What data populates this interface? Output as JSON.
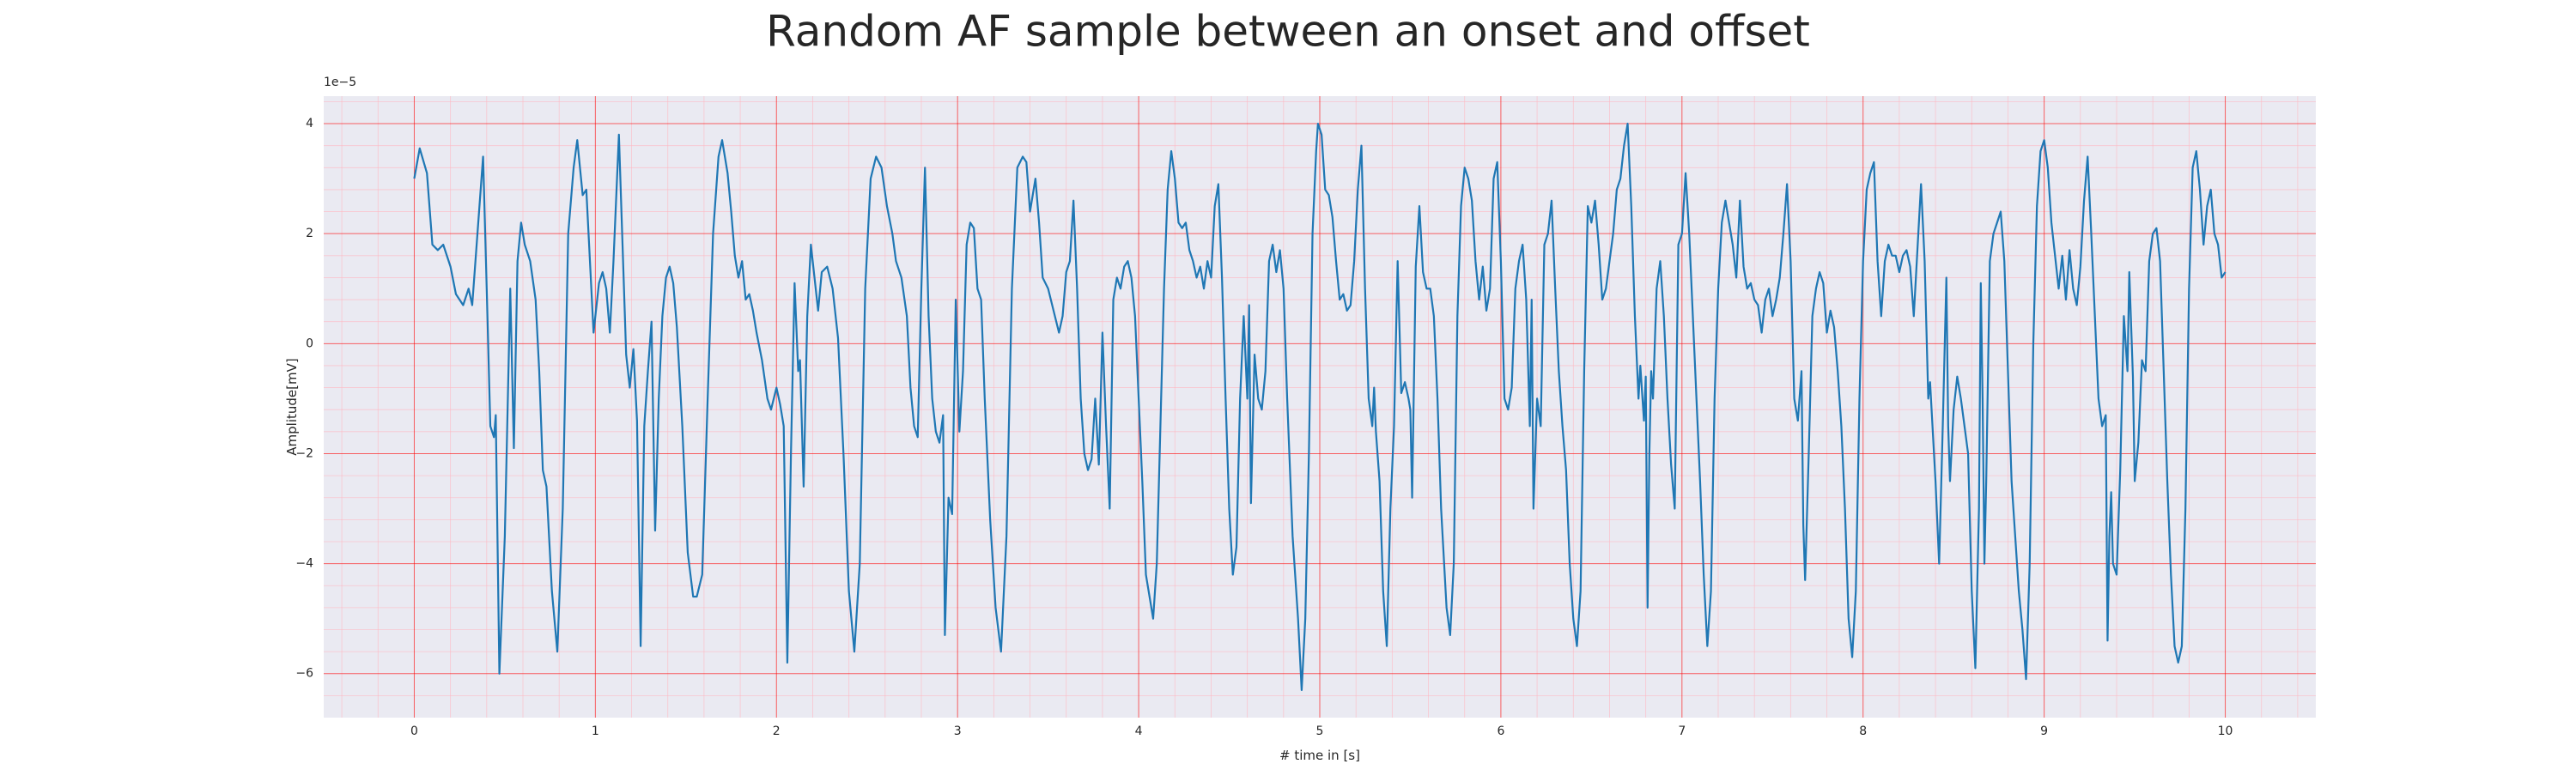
{
  "chart_data": {
    "type": "line",
    "title": "Random AF sample between an onset and offset",
    "xlabel": "# time in [s]",
    "ylabel": "Amplitude[mV]",
    "offset_text": "1e−5",
    "color": "#1f77b4",
    "grid": true,
    "minor_grid": true,
    "xlim": [
      -0.5,
      10.5
    ],
    "ylim": [
      -6.8,
      4.5
    ],
    "xticks": [
      0,
      1,
      2,
      3,
      4,
      5,
      6,
      7,
      8,
      9,
      10
    ],
    "yticks": [
      {
        "value": -6,
        "label": "−6"
      },
      {
        "value": -4,
        "label": "−4"
      },
      {
        "value": -2,
        "label": "−2"
      },
      0,
      2,
      4
    ],
    "x": [
      0,
      0.03,
      0.07,
      0.1,
      0.13,
      0.16,
      0.2,
      0.23,
      0.27,
      0.3,
      0.32,
      0.36,
      0.38,
      0.4,
      0.42,
      0.44,
      0.45,
      0.47,
      0.5,
      0.53,
      0.55,
      0.57,
      0.59,
      0.61,
      0.64,
      0.67,
      0.69,
      0.71,
      0.73,
      0.76,
      0.79,
      0.82,
      0.85,
      0.88,
      0.9,
      0.93,
      0.95,
      0.97,
      0.99,
      1.02,
      1.04,
      1.06,
      1.08,
      1.1,
      1.13,
      1.15,
      1.17,
      1.19,
      1.21,
      1.23,
      1.25,
      1.27,
      1.29,
      1.31,
      1.33,
      1.35,
      1.37,
      1.39,
      1.41,
      1.43,
      1.45,
      1.48,
      1.51,
      1.54,
      1.56,
      1.59,
      1.62,
      1.65,
      1.68,
      1.7,
      1.73,
      1.75,
      1.77,
      1.79,
      1.81,
      1.83,
      1.85,
      1.87,
      1.89,
      1.92,
      1.95,
      1.97,
      2.0,
      2.02,
      2.04,
      2.06,
      2.08,
      2.1,
      2.12,
      2.13,
      2.15,
      2.17,
      2.19,
      2.21,
      2.23,
      2.25,
      2.28,
      2.31,
      2.34,
      2.37,
      2.4,
      2.43,
      2.46,
      2.49,
      2.52,
      2.55,
      2.58,
      2.61,
      2.64,
      2.66,
      2.69,
      2.72,
      2.74,
      2.76,
      2.78,
      2.8,
      2.82,
      2.84,
      2.86,
      2.88,
      2.9,
      2.92,
      2.93,
      2.95,
      2.97,
      2.99,
      3.01,
      3.03,
      3.05,
      3.07,
      3.09,
      3.11,
      3.13,
      3.15,
      3.18,
      3.21,
      3.24,
      3.27,
      3.3,
      3.33,
      3.36,
      3.38,
      3.4,
      3.43,
      3.45,
      3.47,
      3.5,
      3.53,
      3.56,
      3.58,
      3.6,
      3.62,
      3.64,
      3.66,
      3.68,
      3.7,
      3.72,
      3.74,
      3.76,
      3.78,
      3.8,
      3.82,
      3.84,
      3.86,
      3.88,
      3.9,
      3.92,
      3.94,
      3.96,
      3.98,
      4.0,
      4.02,
      4.04,
      4.06,
      4.08,
      4.1,
      4.12,
      4.14,
      4.16,
      4.18,
      4.2,
      4.22,
      4.24,
      4.26,
      4.28,
      4.3,
      4.32,
      4.34,
      4.36,
      4.38,
      4.4,
      4.42,
      4.44,
      4.46,
      4.48,
      4.5,
      4.52,
      4.54,
      4.56,
      4.58,
      4.6,
      4.61,
      4.62,
      4.64,
      4.66,
      4.68,
      4.7,
      4.72,
      4.74,
      4.76,
      4.78,
      4.8,
      4.82,
      4.85,
      4.88,
      4.9,
      4.92,
      4.94,
      4.96,
      4.98,
      4.99,
      5.01,
      5.03,
      5.05,
      5.07,
      5.09,
      5.11,
      5.13,
      5.15,
      5.17,
      5.19,
      5.21,
      5.23,
      5.25,
      5.27,
      5.29,
      5.3,
      5.31,
      5.33,
      5.35,
      5.37,
      5.39,
      5.41,
      5.43,
      5.45,
      5.47,
      5.49,
      5.5,
      5.51,
      5.53,
      5.55,
      5.57,
      5.59,
      5.61,
      5.63,
      5.65,
      5.67,
      5.7,
      5.72,
      5.74,
      5.76,
      5.78,
      5.8,
      5.82,
      5.84,
      5.86,
      5.88,
      5.9,
      5.92,
      5.94,
      5.96,
      5.98,
      6.0,
      6.02,
      6.04,
      6.06,
      6.08,
      6.1,
      6.12,
      6.14,
      6.16,
      6.17,
      6.18,
      6.2,
      6.22,
      6.24,
      6.26,
      6.28,
      6.3,
      6.32,
      6.34,
      6.36,
      6.38,
      6.4,
      6.42,
      6.44,
      6.46,
      6.48,
      6.5,
      6.52,
      6.54,
      6.56,
      6.58,
      6.6,
      6.62,
      6.64,
      6.66,
      6.68,
      6.7,
      6.72,
      6.74,
      6.76,
      6.77,
      6.79,
      6.8,
      6.81,
      6.82,
      6.83,
      6.84,
      6.86,
      6.88,
      6.9,
      6.92,
      6.94,
      6.96,
      6.98,
      7.0,
      7.02,
      7.04,
      7.06,
      7.08,
      7.1,
      7.12,
      7.14,
      7.16,
      7.18,
      7.2,
      7.22,
      7.24,
      7.26,
      7.28,
      7.3,
      7.32,
      7.34,
      7.36,
      7.38,
      7.4,
      7.42,
      7.44,
      7.46,
      7.48,
      7.5,
      7.52,
      7.54,
      7.56,
      7.58,
      7.6,
      7.62,
      7.64,
      7.66,
      7.67,
      7.68,
      7.7,
      7.72,
      7.74,
      7.76,
      7.78,
      7.8,
      7.82,
      7.84,
      7.86,
      7.88,
      7.9,
      7.92,
      7.94,
      7.96,
      7.98,
      8.0,
      8.02,
      8.04,
      8.06,
      8.08,
      8.1,
      8.12,
      8.14,
      8.16,
      8.18,
      8.2,
      8.22,
      8.24,
      8.26,
      8.28,
      8.3,
      8.32,
      8.34,
      8.36,
      8.37,
      8.38,
      8.4,
      8.42,
      8.44,
      8.46,
      8.47,
      8.48,
      8.5,
      8.52,
      8.54,
      8.56,
      8.58,
      8.6,
      8.62,
      8.64,
      8.65,
      8.66,
      8.67,
      8.68,
      8.7,
      8.72,
      8.74,
      8.76,
      8.78,
      8.8,
      8.82,
      8.84,
      8.86,
      8.88,
      8.9,
      8.92,
      8.94,
      8.96,
      8.98,
      9.0,
      9.02,
      9.04,
      9.06,
      9.08,
      9.1,
      9.12,
      9.14,
      9.16,
      9.18,
      9.2,
      9.22,
      9.24,
      9.26,
      9.28,
      9.3,
      9.32,
      9.34,
      9.35,
      9.36,
      9.37,
      9.38,
      9.4,
      9.42,
      9.44,
      9.46,
      9.47,
      9.49,
      9.5,
      9.52,
      9.54,
      9.56,
      9.58,
      9.6,
      9.62,
      9.64,
      9.66,
      9.68,
      9.7,
      9.72,
      9.74,
      9.76,
      9.78,
      9.8,
      9.82,
      9.84,
      9.86,
      9.88,
      9.9,
      9.92,
      9.94,
      9.96,
      9.98,
      10.0
    ],
    "values": [
      3.0,
      3.55,
      3.1,
      1.8,
      1.7,
      1.8,
      1.4,
      0.9,
      0.7,
      1.0,
      0.7,
      2.5,
      3.4,
      1.0,
      -1.5,
      -1.7,
      -1.3,
      -6.0,
      -3.5,
      1.0,
      -1.9,
      1.5,
      2.2,
      1.8,
      1.5,
      0.8,
      -0.5,
      -2.3,
      -2.6,
      -4.5,
      -5.6,
      -3.0,
      2.0,
      3.2,
      3.7,
      2.7,
      2.8,
      1.5,
      0.2,
      1.1,
      1.3,
      1.0,
      0.2,
      1.5,
      3.8,
      1.8,
      -0.2,
      -0.8,
      -0.1,
      -1.4,
      -5.5,
      -1.5,
      -0.5,
      0.4,
      -3.4,
      -1.0,
      0.5,
      1.2,
      1.4,
      1.1,
      0.3,
      -1.5,
      -3.8,
      -4.6,
      -4.6,
      -4.2,
      -1.0,
      2.0,
      3.4,
      3.7,
      3.1,
      2.4,
      1.6,
      1.2,
      1.5,
      0.8,
      0.9,
      0.6,
      0.2,
      -0.3,
      -1.0,
      -1.2,
      -0.8,
      -1.1,
      -1.5,
      -5.8,
      -2.0,
      1.1,
      -0.5,
      -0.3,
      -2.6,
      0.5,
      1.8,
      1.2,
      0.6,
      1.3,
      1.4,
      1.0,
      0.1,
      -2.0,
      -4.5,
      -5.6,
      -4.0,
      1.0,
      3.0,
      3.4,
      3.2,
      2.5,
      2.0,
      1.5,
      1.2,
      0.5,
      -0.8,
      -1.5,
      -1.7,
      1.0,
      3.2,
      0.5,
      -1.0,
      -1.6,
      -1.8,
      -1.3,
      -5.3,
      -2.8,
      -3.1,
      0.8,
      -1.6,
      -0.5,
      1.8,
      2.2,
      2.1,
      1.0,
      0.8,
      -1.0,
      -3.2,
      -4.8,
      -5.6,
      -3.5,
      1.0,
      3.2,
      3.4,
      3.3,
      2.4,
      3.0,
      2.2,
      1.2,
      1.0,
      0.6,
      0.2,
      0.5,
      1.3,
      1.5,
      2.6,
      1.0,
      -1.0,
      -2.0,
      -2.3,
      -2.1,
      -1.0,
      -2.2,
      0.2,
      -1.5,
      -3.0,
      0.8,
      1.2,
      1.0,
      1.4,
      1.5,
      1.2,
      0.5,
      -1.0,
      -2.5,
      -4.2,
      -4.6,
      -5.0,
      -4.0,
      -1.5,
      1.0,
      2.8,
      3.5,
      3.0,
      2.2,
      2.1,
      2.2,
      1.7,
      1.5,
      1.2,
      1.4,
      1.0,
      1.5,
      1.2,
      2.5,
      2.9,
      1.2,
      -1.0,
      -3.0,
      -4.2,
      -3.7,
      -1.0,
      0.5,
      -1.0,
      0.7,
      -2.9,
      -0.2,
      -1.0,
      -1.2,
      -0.5,
      1.5,
      1.8,
      1.3,
      1.7,
      1.0,
      -1.0,
      -3.5,
      -5.0,
      -6.3,
      -5.0,
      -2.0,
      2.0,
      3.5,
      4.0,
      3.8,
      2.8,
      2.7,
      2.3,
      1.5,
      0.8,
      0.9,
      0.6,
      0.7,
      1.5,
      2.8,
      3.6,
      1.0,
      -1.0,
      -1.5,
      -0.8,
      -1.6,
      -2.5,
      -4.5,
      -5.5,
      -3.0,
      -1.5,
      1.5,
      -0.9,
      -0.7,
      -1.0,
      -1.2,
      -2.8,
      1.4,
      2.5,
      1.3,
      1.0,
      1.0,
      0.5,
      -1.0,
      -3.0,
      -4.8,
      -5.3,
      -4.0,
      0.5,
      2.5,
      3.2,
      3.0,
      2.6,
      1.5,
      0.8,
      1.4,
      0.6,
      1.0,
      3.0,
      3.3,
      1.5,
      -1.0,
      -1.2,
      -0.8,
      1.0,
      1.5,
      1.8,
      0.8,
      -1.5,
      0.8,
      -3.0,
      -1.0,
      -1.5,
      1.8,
      2.0,
      2.6,
      1.0,
      -0.5,
      -1.5,
      -2.3,
      -4.0,
      -5.0,
      -5.5,
      -4.5,
      -0.5,
      2.5,
      2.2,
      2.6,
      1.8,
      0.8,
      1.0,
      1.5,
      2.0,
      2.8,
      3.0,
      3.6,
      4.0,
      2.5,
      0.5,
      -1.0,
      -0.4,
      -1.4,
      -0.6,
      -4.8,
      -2.0,
      -0.5,
      -1.0,
      1.0,
      1.5,
      0.5,
      -1.0,
      -2.2,
      -3.0,
      1.8,
      2.0,
      3.1,
      2.0,
      0.5,
      -1.0,
      -2.5,
      -4.2,
      -5.5,
      -4.5,
      -1.0,
      1.0,
      2.2,
      2.6,
      2.2,
      1.8,
      1.2,
      2.6,
      1.4,
      1.0,
      1.1,
      0.8,
      0.7,
      0.2,
      0.8,
      1.0,
      0.5,
      0.8,
      1.2,
      2.0,
      2.9,
      1.5,
      -1.0,
      -1.4,
      -0.5,
      -3.3,
      -4.3,
      -2.0,
      0.5,
      1.0,
      1.3,
      1.1,
      0.2,
      0.6,
      0.3,
      -0.5,
      -1.5,
      -3.0,
      -5.0,
      -5.7,
      -4.5,
      -1.0,
      1.5,
      2.8,
      3.1,
      3.3,
      1.5,
      0.5,
      1.5,
      1.8,
      1.6,
      1.6,
      1.3,
      1.6,
      1.7,
      1.4,
      0.5,
      1.7,
      2.9,
      1.5,
      -1.0,
      -0.7,
      -1.3,
      -2.5,
      -4.0,
      -1.5,
      1.2,
      -1.5,
      -2.5,
      -1.2,
      -0.6,
      -1.0,
      -1.5,
      -2.0,
      -4.5,
      -5.9,
      -3.0,
      1.1,
      -1.0,
      -4.0,
      -2.5,
      1.5,
      2.0,
      2.2,
      2.4,
      1.5,
      -0.5,
      -2.5,
      -3.5,
      -4.5,
      -5.2,
      -6.1,
      -4.0,
      0.0,
      2.5,
      3.5,
      3.7,
      3.2,
      2.2,
      1.6,
      1.0,
      1.6,
      0.8,
      1.7,
      1.0,
      0.7,
      1.4,
      2.6,
      3.4,
      2.0,
      0.5,
      -1.0,
      -1.5,
      -1.3,
      -5.4,
      -3.5,
      -2.7,
      -4.0,
      -4.2,
      -2.3,
      0.5,
      -0.5,
      1.3,
      -0.6,
      -2.5,
      -1.8,
      -0.3,
      -0.5,
      1.5,
      2.0,
      2.1,
      1.5,
      -0.5,
      -2.5,
      -4.2,
      -5.5,
      -5.8,
      -5.5,
      -3.0,
      1.0,
      3.2,
      3.5,
      2.8,
      1.8,
      2.5,
      2.8,
      2.0,
      1.8,
      1.2,
      1.3
    ]
  }
}
